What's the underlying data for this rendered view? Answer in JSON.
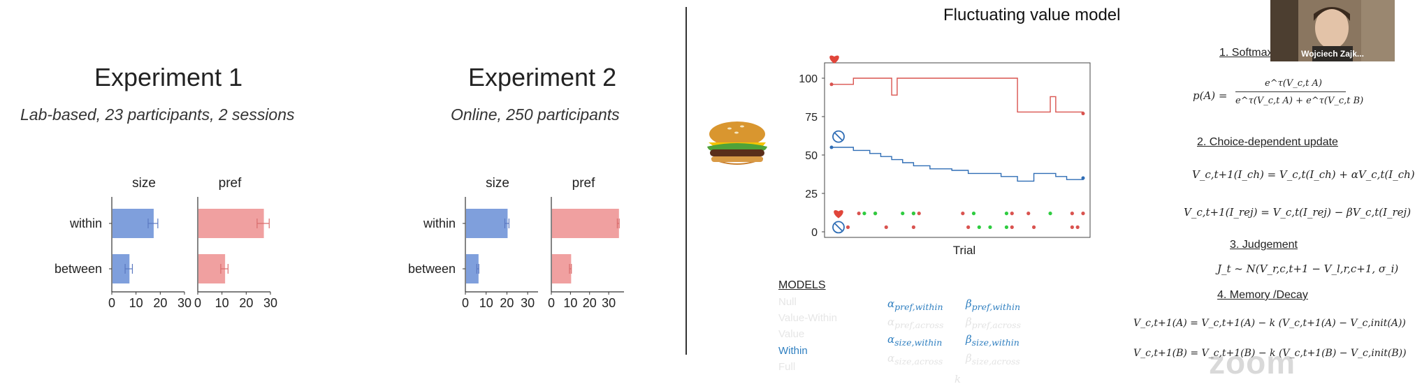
{
  "experiment1": {
    "title": "Experiment 1",
    "subtitle": "Lab-based, 23 participants, 2 sessions"
  },
  "experiment2": {
    "title": "Experiment 2",
    "subtitle": "Online, 250 participants"
  },
  "chart_data": [
    {
      "type": "bar",
      "orientation": "horizontal",
      "panel": "size",
      "categories": [
        "within",
        "between"
      ],
      "values": [
        17,
        7
      ],
      "errors": [
        2,
        1.5
      ],
      "xlim": [
        0,
        30
      ],
      "ticks": [
        0,
        10,
        20,
        30
      ],
      "color": "#7f9fdc"
    },
    {
      "type": "bar",
      "orientation": "horizontal",
      "panel": "pref",
      "categories": [
        "within",
        "between"
      ],
      "values": [
        27,
        11
      ],
      "errors": [
        2.5,
        1.5
      ],
      "xlim": [
        0,
        30
      ],
      "ticks": [
        0,
        10,
        20,
        30
      ],
      "color": "#f0a0a0"
    },
    {
      "type": "bar",
      "orientation": "horizontal",
      "panel": "size",
      "categories": [
        "within",
        "between"
      ],
      "values": [
        20,
        6
      ],
      "errors": [
        1,
        0.5
      ],
      "xlim": [
        0,
        35
      ],
      "ticks": [
        0,
        10,
        20,
        30
      ],
      "color": "#7f9fdc"
    },
    {
      "type": "bar",
      "orientation": "horizontal",
      "panel": "pref",
      "categories": [
        "within",
        "between"
      ],
      "values": [
        35,
        10
      ],
      "errors": [
        0.5,
        0.5
      ],
      "xlim": [
        0,
        38
      ],
      "ticks": [
        0,
        10,
        20,
        30
      ],
      "color": "#f0a0a0"
    },
    {
      "type": "line",
      "xlabel": "Trial",
      "ylim": [
        0,
        100
      ],
      "yticks": [
        0,
        25,
        50,
        75,
        100
      ],
      "series": [
        {
          "color": "#d9534f",
          "values": [
            96,
            96,
            96,
            96,
            100,
            100,
            100,
            100,
            100,
            100,
            100,
            89,
            100,
            100,
            100,
            100,
            100,
            100,
            100,
            100,
            100,
            100,
            100,
            100,
            100,
            100,
            100,
            100,
            100,
            100,
            100,
            100,
            100,
            100,
            78,
            78,
            78,
            78,
            78,
            78,
            88,
            78,
            78,
            78,
            78,
            78,
            77
          ]
        },
        {
          "color": "#2f6db5",
          "values": [
            55,
            55,
            55,
            55,
            53,
            53,
            53,
            51,
            51,
            49,
            49,
            47,
            47,
            45,
            45,
            43,
            43,
            43,
            41,
            41,
            41,
            41,
            40,
            40,
            40,
            38,
            38,
            38,
            38,
            38,
            38,
            36,
            36,
            36,
            33,
            33,
            33,
            38,
            38,
            38,
            38,
            36,
            36,
            34,
            34,
            34,
            35
          ]
        }
      ],
      "chosen_red_x": [
        5,
        8,
        15,
        16,
        24,
        33,
        36,
        44,
        46
      ],
      "chosen_blue_x": [
        7,
        9,
        12,
        16,
        22,
        30,
        33,
        35,
        37
      ],
      "rejected_red_x": [
        3,
        10,
        15,
        25,
        33,
        37,
        44,
        45
      ],
      "rejected_green_x": [
        6,
        8,
        13,
        15,
        26,
        32,
        40
      ]
    }
  ],
  "right_slide": {
    "title": "Fluctuating value model",
    "models_heading": "MODELS",
    "models": [
      "Null",
      "Value-Within",
      "Value",
      "Within",
      "Full"
    ],
    "params": {
      "a_pref_within": "α",
      "a_pref_within_sub": "pref,within",
      "b_pref_within": "β",
      "b_pref_within_sub": "pref,within",
      "a_pref_across": "α",
      "a_pref_across_sub": "pref,across",
      "b_pref_across": "β",
      "b_pref_across_sub": "pref,across",
      "a_size_within": "α",
      "a_size_within_sub": "size,within",
      "b_size_within": "β",
      "b_size_within_sub": "size,within",
      "a_size_across": "α",
      "a_size_across_sub": "size,across",
      "b_size_across": "β",
      "b_size_across_sub": "size,across",
      "k": "k"
    },
    "equations": {
      "h1": "1. Softmax",
      "softmax_lhs": "p(A) =",
      "softmax_num": "e^τ(V_c,t A)",
      "softmax_den": "e^τ(V_c,t A) + e^τ(V_c,t B)",
      "h2": "2. Choice-dependent update",
      "update_ch": "V_c,t+1(I_ch) = V_c,t(I_ch) + αV_c,t(I_ch)",
      "update_rej": "V_c,t+1(I_rej) = V_c,t(I_rej) − βV_c,t(I_rej)",
      "h3": "3. Judgement",
      "judgement": "J_t ~ N(V_r,c,t+1 − V_l,r,c+1, σ_i)",
      "h4": "4. Memory /Decay",
      "decay_a": "V_c,t+1(A) = V_c,t+1(A) − k (V_c,t+1(A) − V_c,init(A))",
      "decay_b": "V_c,t+1(B) = V_c,t+1(B) − k (V_c,t+1(B) − V_c,init(B))"
    }
  },
  "video": {
    "name": "Wojciech Zajk..."
  },
  "watermark": "zoom",
  "colors": {
    "blue_bar": "#7f9fdc",
    "red_bar": "#f0a0a0",
    "red_line": "#d9534f",
    "blue_line": "#2f6db5",
    "green_dot": "#2ecc40",
    "model_active": "#2f7fc0",
    "model_faded": "#dddddd"
  }
}
